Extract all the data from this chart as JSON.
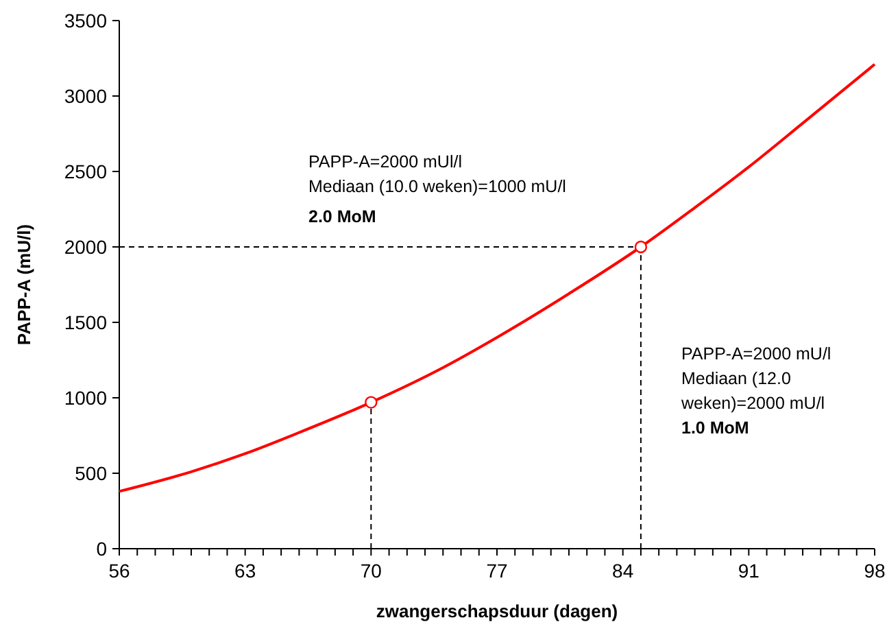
{
  "chart_data": {
    "type": "line",
    "xlabel": "zwangerschapsduur (dagen)",
    "ylabel": "PAPP-A (mU/l)",
    "xlim": [
      56,
      98
    ],
    "ylim": [
      0,
      3500
    ],
    "xticks": [
      56,
      {
        "value": 57,
        "label": null
      },
      {
        "value": 58,
        "label": null
      },
      {
        "value": 59,
        "label": null
      },
      {
        "value": 60,
        "label": null
      },
      {
        "value": 61,
        "label": null
      },
      {
        "value": 62,
        "label": null
      },
      63,
      {
        "value": 64,
        "label": null
      },
      {
        "value": 65,
        "label": null
      },
      {
        "value": 66,
        "label": null
      },
      {
        "value": 67,
        "label": null
      },
      {
        "value": 68,
        "label": null
      },
      {
        "value": 69,
        "label": null
      },
      70,
      {
        "value": 71,
        "label": null
      },
      {
        "value": 72,
        "label": null
      },
      {
        "value": 73,
        "label": null
      },
      {
        "value": 74,
        "label": null
      },
      {
        "value": 75,
        "label": null
      },
      {
        "value": 76,
        "label": null
      },
      77,
      {
        "value": 78,
        "label": null
      },
      {
        "value": 79,
        "label": null
      },
      {
        "value": 80,
        "label": null
      },
      {
        "value": 81,
        "label": null
      },
      {
        "value": 82,
        "label": null
      },
      {
        "value": 83,
        "label": null
      },
      84,
      {
        "value": 85,
        "label": null
      },
      {
        "value": 86,
        "label": null
      },
      {
        "value": 87,
        "label": null
      },
      {
        "value": 88,
        "label": null
      },
      {
        "value": 89,
        "label": null
      },
      {
        "value": 90,
        "label": null
      },
      91,
      {
        "value": 92,
        "label": null
      },
      {
        "value": 93,
        "label": null
      },
      {
        "value": 94,
        "label": null
      },
      {
        "value": 95,
        "label": null
      },
      {
        "value": 96,
        "label": null
      },
      {
        "value": 97,
        "label": null
      },
      98
    ],
    "yticks": [
      0,
      500,
      1000,
      1500,
      2000,
      2500,
      3000,
      3500
    ],
    "grid": false,
    "series": [
      {
        "color": "#ff0000",
        "marker": "none",
        "line_style": "solid",
        "x": [
          56,
          60,
          63,
          66,
          70,
          74,
          77,
          81,
          85,
          88,
          91,
          94,
          98
        ],
        "values": [
          380,
          510,
          630,
          770,
          970,
          1200,
          1400,
          1690,
          2000,
          2260,
          2530,
          2820,
          3210
        ]
      },
      {
        "type": "scatter",
        "color": "#ff0000",
        "marker": "circle",
        "x": [
          70,
          85
        ],
        "values": [
          970,
          2000
        ]
      }
    ],
    "ref_lines": [
      {
        "axis": "x",
        "value": 70,
        "line_style": "dashed",
        "color": "#000000"
      },
      {
        "axis": "x",
        "value": 85,
        "line_style": "dashed",
        "color": "#000000"
      },
      {
        "axis": "y",
        "value": 2000,
        "line_style": "dashed",
        "color": "#000000"
      }
    ],
    "annotations": [
      "PAPP-A=2000 mUl/l\nMediaan (10.0 weken)=1000 mU/l",
      "2.0  MoM",
      "PAPP-A=2000 mU/l\nMediaan (12.0\nweken)=2000 mU/l",
      "1.0  MoM"
    ]
  }
}
